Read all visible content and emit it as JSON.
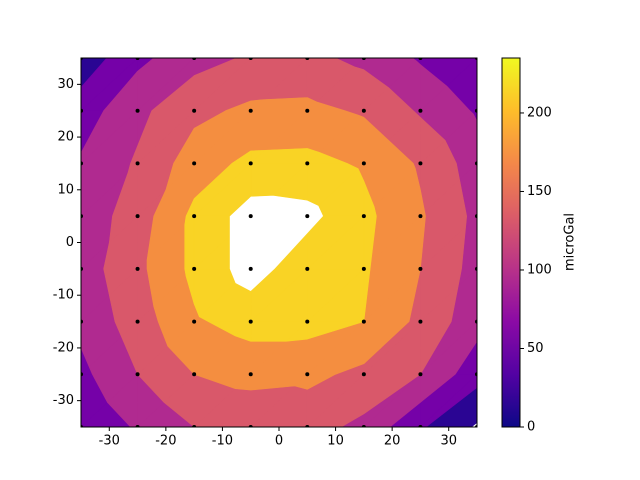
{
  "chart_data": {
    "type": "contour",
    "x": [
      -35,
      -25,
      -15,
      -5,
      5,
      15,
      25,
      35
    ],
    "y": [
      -35,
      -25,
      -15,
      -5,
      5,
      15,
      25,
      35
    ],
    "z": [
      [
        45,
        85,
        120,
        125,
        135,
        110,
        45,
        -5
      ],
      [
        70,
        120,
        160,
        175,
        170,
        150,
        120,
        55
      ],
      [
        90,
        140,
        195,
        215,
        215,
        200,
        150,
        95
      ],
      [
        100,
        150,
        210,
        250,
        215,
        205,
        160,
        105
      ],
      [
        95,
        140,
        210,
        250,
        245,
        210,
        165,
        110
      ],
      [
        85,
        125,
        180,
        210,
        212,
        195,
        155,
        100
      ],
      [
        60,
        110,
        150,
        168,
        170,
        155,
        115,
        75
      ],
      [
        15,
        70,
        105,
        125,
        130,
        110,
        75,
        40
      ]
    ],
    "levels": [
      0,
      40,
      80,
      120,
      160,
      200,
      235
    ],
    "colors": [
      "#2a0593",
      "#7501a8",
      "#b02a90",
      "#d9586a",
      "#f48e40",
      "#f9d325"
    ],
    "xlim": [
      -35,
      35
    ],
    "ylim": [
      -35,
      35
    ],
    "xticks": [
      -30,
      -20,
      -10,
      0,
      10,
      20,
      30
    ],
    "yticks": [
      -30,
      -20,
      -10,
      0,
      10,
      20,
      30
    ],
    "clim": [
      0,
      235
    ],
    "cticks": [
      0,
      50,
      100,
      150,
      200
    ],
    "colormap": [
      "#0d0887",
      "#5302a3",
      "#8b0aa5",
      "#b83289",
      "#db5c68",
      "#f48849",
      "#febd2a",
      "#f0f921"
    ],
    "colorbar_label": "microGal",
    "marker_color": "#000000"
  }
}
